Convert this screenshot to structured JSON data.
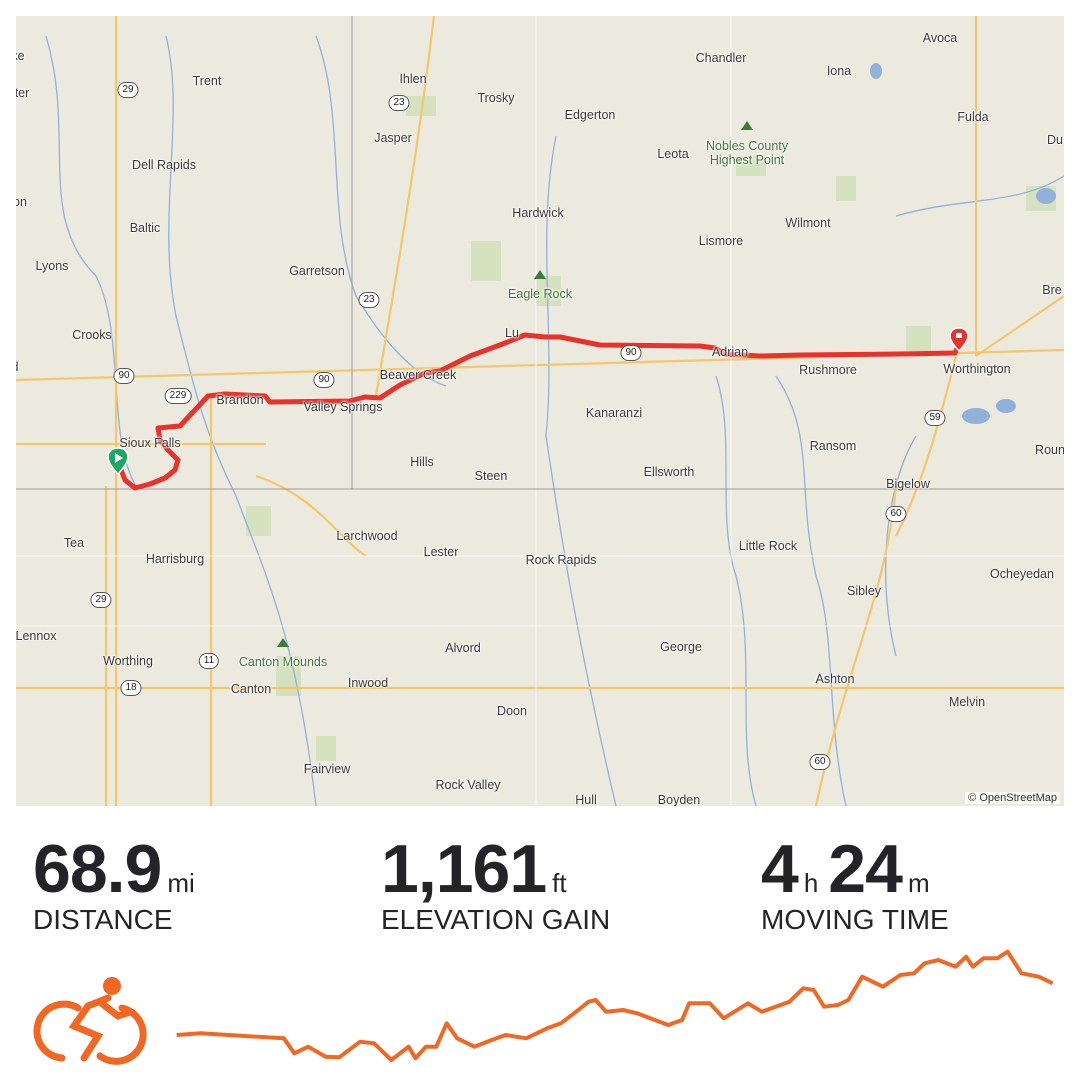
{
  "map": {
    "attribution": "© OpenStreetMap",
    "route_color": "#e8322b",
    "start_marker_color": "#1aa863",
    "end_marker_color": "#e8322b",
    "places": [
      "ke",
      "ter",
      "Trent",
      "Ihlen",
      "Trosky",
      "Chandler",
      "Iona",
      "Avoca",
      "Fulda",
      "Du",
      "Jasper",
      "Edgerton",
      "Leota",
      "Dell Rapids",
      "on",
      "Hardwick",
      "Wilmont",
      "Baltic",
      "Lismore",
      "Lyons",
      "Garretson",
      "Bre",
      "Crooks",
      "d",
      "Lu",
      "Beaver Creek",
      "Adrian",
      "Rushmore",
      "Worthington",
      "Brandon",
      "Valley Springs",
      "Kanaranzi",
      "Sioux Falls",
      "Ransom",
      "Roun",
      "Hills",
      "Steen",
      "Ellsworth",
      "Bigelow",
      "Tea",
      "Larchwood",
      "Lester",
      "Rock Rapids",
      "Little Rock",
      "Harrisburg",
      "Ocheyedan",
      "Sibley",
      "Lennox",
      "Alvord",
      "George",
      "Worthing",
      "Inwood",
      "Canton",
      "Ashton",
      "Melvin",
      "Doon",
      "Fairview",
      "Rock Valley",
      "Hull",
      "Boyden"
    ],
    "peaks": [
      "Nobles County Highest Point",
      "Eagle Rock",
      "Canton Mounds"
    ],
    "highways": [
      "29",
      "23",
      "23",
      "90",
      "229",
      "90",
      "90",
      "59",
      "60",
      "29",
      "11",
      "18",
      "60"
    ]
  },
  "stats": [
    {
      "value": "68.9",
      "unit": "mi",
      "label": "DISTANCE"
    },
    {
      "value": "1,161",
      "unit": "ft",
      "label": "ELEVATION GAIN"
    },
    {
      "value_h": "4",
      "unit_h": "h",
      "value_m": "24",
      "unit_m": "m",
      "label": "MOVING TIME"
    }
  ],
  "activity_icon": "cycling-icon",
  "accent_color": "#f26722"
}
